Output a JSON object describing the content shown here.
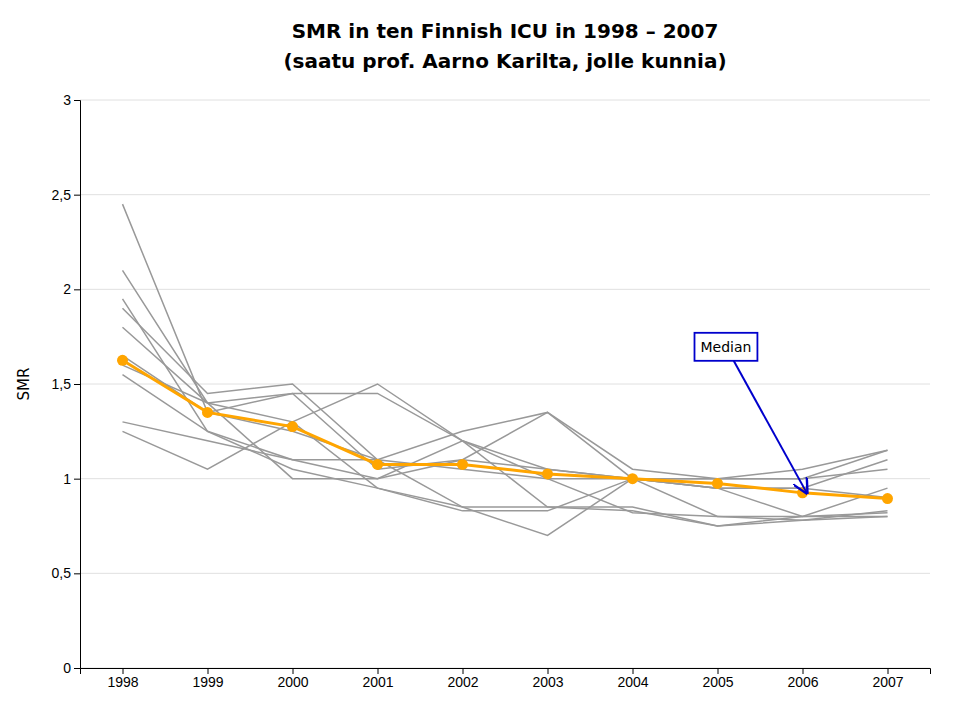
{
  "chart_data": {
    "type": "line",
    "title": "SMR in ten Finnish ICU in 1998 – 2007",
    "subtitle": "(saatu prof. Aarno Karilta, jolle kunnia)",
    "ylabel": "SMR",
    "x": [
      1998,
      1999,
      2000,
      2001,
      2002,
      2003,
      2004,
      2005,
      2006,
      2007
    ],
    "xlim": [
      1997.5,
      2007.5
    ],
    "xticks": [
      1998,
      1999,
      2000,
      2001,
      2002,
      2003,
      2004,
      2005,
      2006,
      2007
    ],
    "ylim": [
      0,
      3
    ],
    "yticks": [
      0,
      {
        "value": 0.5,
        "label": "0,5"
      },
      1,
      {
        "value": 1.5,
        "label": "1,5"
      },
      2,
      {
        "value": 2.5,
        "label": "2,5"
      },
      3
    ],
    "grid": "y",
    "series": [
      {
        "color": "#999999",
        "values": [
          2.45,
          1.35,
          1.25,
          1.1,
          1.25,
          1.35,
          1.05,
          1.0,
          1.05,
          1.15
        ]
      },
      {
        "color": "#999999",
        "values": [
          2.1,
          1.4,
          1.0,
          1.0,
          1.2,
          0.85,
          0.85,
          0.75,
          0.8,
          0.82
        ]
      },
      {
        "color": "#999999",
        "values": [
          1.95,
          1.25,
          1.05,
          0.95,
          0.85,
          0.7,
          1.0,
          0.8,
          0.8,
          0.8
        ]
      },
      {
        "color": "#999999",
        "values": [
          1.9,
          1.45,
          1.5,
          1.1,
          1.05,
          1.0,
          1.0,
          0.95,
          0.95,
          0.9
        ]
      },
      {
        "color": "#999999",
        "values": [
          1.8,
          1.4,
          1.45,
          1.05,
          1.1,
          1.05,
          1.0,
          1.0,
          1.0,
          1.05
        ]
      },
      {
        "color": "#999999",
        "values": [
          1.65,
          1.35,
          1.45,
          1.45,
          1.2,
          1.05,
          1.0,
          0.95,
          0.95,
          1.1
        ]
      },
      {
        "color": "#999999",
        "values": [
          1.6,
          1.4,
          1.3,
          0.95,
          0.83,
          0.83,
          1.0,
          0.95,
          0.8,
          0.95
        ]
      },
      {
        "color": "#999999",
        "values": [
          1.55,
          1.25,
          1.1,
          1.0,
          1.1,
          1.35,
          1.0,
          1.0,
          1.0,
          1.15
        ]
      },
      {
        "color": "#999999",
        "values": [
          1.3,
          1.2,
          1.1,
          1.1,
          0.85,
          0.85,
          0.83,
          0.75,
          0.78,
          0.8
        ]
      },
      {
        "color": "#999999",
        "values": [
          1.25,
          1.05,
          1.3,
          1.5,
          1.2,
          1.0,
          0.82,
          0.8,
          0.78,
          0.83
        ]
      },
      {
        "color": "#FFA500",
        "marker": "circle",
        "values": [
          1.625,
          1.35,
          1.275,
          1.075,
          1.075,
          1.025,
          1.0,
          0.975,
          0.925,
          0.895
        ]
      }
    ],
    "annotations": [
      {
        "text": "Median",
        "x": 2006.05,
        "y": 0.925,
        "text_x": 2004.8,
        "text_y": 1.67,
        "color": "#0000CC"
      }
    ]
  }
}
